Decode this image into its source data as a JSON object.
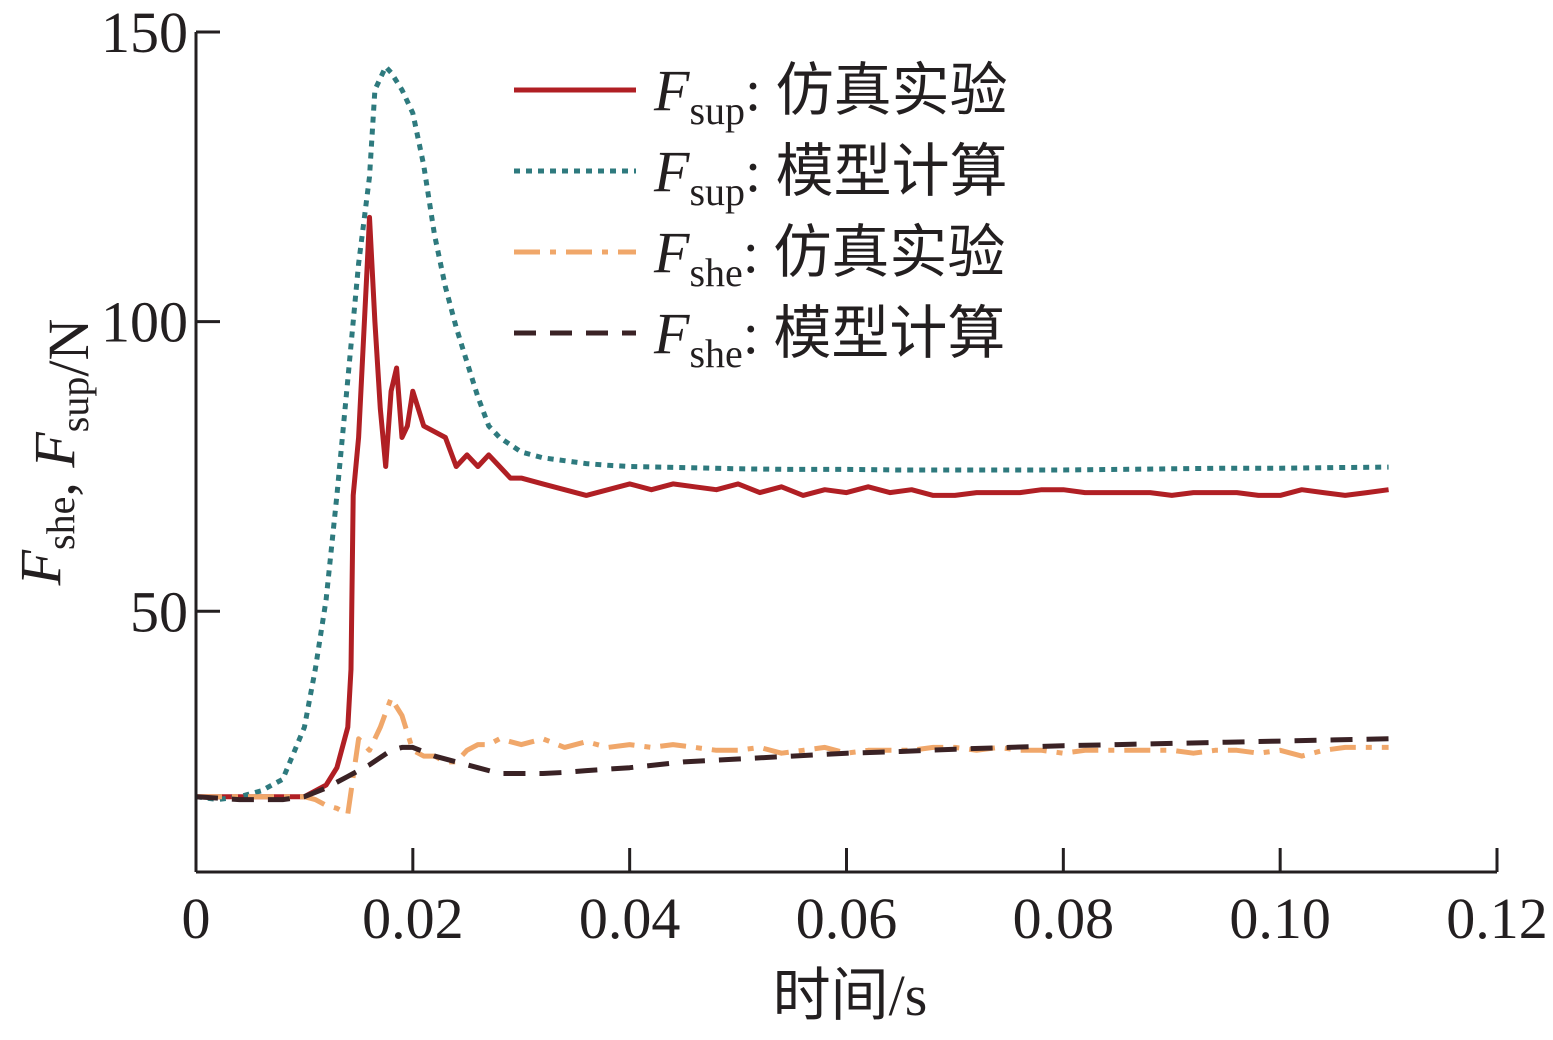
{
  "chart_data": {
    "type": "line",
    "xlabel": "时间/s",
    "ylabel": {
      "segments": [
        {
          "text": "F",
          "italic": true
        },
        {
          "text": "she",
          "sub": true
        },
        {
          "text": ", "
        },
        {
          "text": "F",
          "italic": true
        },
        {
          "text": "sup",
          "sub": true
        },
        {
          "text": "/N"
        }
      ]
    },
    "xlim": [
      0,
      0.12
    ],
    "ylim": [
      5,
      150
    ],
    "x_ticks": [
      0,
      0.02,
      0.04,
      0.06,
      0.08,
      0.1,
      0.12
    ],
    "x_tick_labels": [
      "0",
      "0.02",
      "0.04",
      "0.06",
      "0.08",
      "0.10",
      "0.12"
    ],
    "y_ticks": [
      50,
      100,
      150
    ],
    "y_tick_labels": [
      "50",
      "100",
      "150"
    ],
    "grid": false,
    "legend_position": "top-right",
    "series": [
      {
        "name": "F_sup: 仿真实验",
        "label_var": "F",
        "label_sub": "sup",
        "label_text": ": 仿真实验",
        "color": "#b01f24",
        "style": "solid",
        "points": [
          [
            0,
            18
          ],
          [
            0.008,
            18
          ],
          [
            0.01,
            18
          ],
          [
            0.012,
            20
          ],
          [
            0.013,
            23
          ],
          [
            0.014,
            30
          ],
          [
            0.0143,
            40
          ],
          [
            0.0145,
            70
          ],
          [
            0.015,
            80
          ],
          [
            0.0158,
            110
          ],
          [
            0.016,
            118
          ],
          [
            0.0165,
            100
          ],
          [
            0.017,
            85
          ],
          [
            0.0175,
            75
          ],
          [
            0.018,
            88
          ],
          [
            0.0185,
            92
          ],
          [
            0.019,
            80
          ],
          [
            0.0195,
            82
          ],
          [
            0.02,
            88
          ],
          [
            0.021,
            82
          ],
          [
            0.022,
            81
          ],
          [
            0.023,
            80
          ],
          [
            0.024,
            75
          ],
          [
            0.025,
            77
          ],
          [
            0.026,
            75
          ],
          [
            0.027,
            77
          ],
          [
            0.028,
            75
          ],
          [
            0.029,
            73
          ],
          [
            0.03,
            73
          ],
          [
            0.032,
            72
          ],
          [
            0.034,
            71
          ],
          [
            0.036,
            70
          ],
          [
            0.038,
            71
          ],
          [
            0.04,
            72
          ],
          [
            0.042,
            71
          ],
          [
            0.044,
            72
          ],
          [
            0.046,
            71.5
          ],
          [
            0.048,
            71
          ],
          [
            0.05,
            72
          ],
          [
            0.052,
            70.5
          ],
          [
            0.054,
            71.5
          ],
          [
            0.056,
            70
          ],
          [
            0.058,
            71
          ],
          [
            0.06,
            70.5
          ],
          [
            0.062,
            71.5
          ],
          [
            0.064,
            70.5
          ],
          [
            0.066,
            71
          ],
          [
            0.068,
            70
          ],
          [
            0.07,
            70
          ],
          [
            0.072,
            70.5
          ],
          [
            0.074,
            70.5
          ],
          [
            0.076,
            70.5
          ],
          [
            0.078,
            71
          ],
          [
            0.08,
            71
          ],
          [
            0.082,
            70.5
          ],
          [
            0.084,
            70.5
          ],
          [
            0.086,
            70.5
          ],
          [
            0.088,
            70.5
          ],
          [
            0.09,
            70
          ],
          [
            0.092,
            70.5
          ],
          [
            0.094,
            70.5
          ],
          [
            0.096,
            70.5
          ],
          [
            0.098,
            70
          ],
          [
            0.1,
            70
          ],
          [
            0.102,
            71
          ],
          [
            0.104,
            70.5
          ],
          [
            0.106,
            70
          ],
          [
            0.108,
            70.5
          ],
          [
            0.11,
            71
          ]
        ]
      },
      {
        "name": "F_sup: 模型计算",
        "label_var": "F",
        "label_sub": "sup",
        "label_text": ": 模型计算",
        "color": "#2e7a7e",
        "style": "dotted",
        "points": [
          [
            0,
            18
          ],
          [
            0.002,
            17.5
          ],
          [
            0.004,
            18
          ],
          [
            0.006,
            19
          ],
          [
            0.008,
            21
          ],
          [
            0.01,
            30
          ],
          [
            0.011,
            40
          ],
          [
            0.012,
            52
          ],
          [
            0.013,
            70
          ],
          [
            0.014,
            90
          ],
          [
            0.015,
            110
          ],
          [
            0.016,
            125
          ],
          [
            0.0165,
            140
          ],
          [
            0.017,
            142
          ],
          [
            0.0175,
            144
          ],
          [
            0.018,
            143
          ],
          [
            0.019,
            140
          ],
          [
            0.02,
            136
          ],
          [
            0.021,
            127
          ],
          [
            0.022,
            115
          ],
          [
            0.023,
            106
          ],
          [
            0.024,
            99
          ],
          [
            0.025,
            93
          ],
          [
            0.026,
            87
          ],
          [
            0.027,
            82
          ],
          [
            0.028,
            80
          ],
          [
            0.03,
            77.5
          ],
          [
            0.032,
            76.5
          ],
          [
            0.034,
            76
          ],
          [
            0.036,
            75.5
          ],
          [
            0.038,
            75.2
          ],
          [
            0.04,
            75
          ],
          [
            0.045,
            74.8
          ],
          [
            0.05,
            74.6
          ],
          [
            0.055,
            74.5
          ],
          [
            0.06,
            74.5
          ],
          [
            0.065,
            74.4
          ],
          [
            0.07,
            74.4
          ],
          [
            0.075,
            74.4
          ],
          [
            0.08,
            74.4
          ],
          [
            0.085,
            74.5
          ],
          [
            0.09,
            74.6
          ],
          [
            0.095,
            74.7
          ],
          [
            0.1,
            74.7
          ],
          [
            0.105,
            74.8
          ],
          [
            0.11,
            74.9
          ]
        ]
      },
      {
        "name": "F_she: 仿真实验",
        "label_var": "F",
        "label_sub": "she",
        "label_text": ": 仿真实验",
        "color": "#f0a76a",
        "style": "dashdot",
        "points": [
          [
            0,
            18
          ],
          [
            0.008,
            18
          ],
          [
            0.01,
            18
          ],
          [
            0.011,
            17.5
          ],
          [
            0.012,
            16.5
          ],
          [
            0.013,
            16
          ],
          [
            0.014,
            15
          ],
          [
            0.015,
            28
          ],
          [
            0.016,
            26
          ],
          [
            0.017,
            30
          ],
          [
            0.018,
            35
          ],
          [
            0.019,
            32
          ],
          [
            0.02,
            26
          ],
          [
            0.021,
            25
          ],
          [
            0.022,
            25
          ],
          [
            0.023,
            24
          ],
          [
            0.024,
            24
          ],
          [
            0.025,
            26
          ],
          [
            0.026,
            27
          ],
          [
            0.027,
            27
          ],
          [
            0.028,
            28
          ],
          [
            0.03,
            27
          ],
          [
            0.032,
            28
          ],
          [
            0.034,
            26.5
          ],
          [
            0.036,
            27.5
          ],
          [
            0.038,
            26.5
          ],
          [
            0.04,
            27
          ],
          [
            0.042,
            26.5
          ],
          [
            0.044,
            27
          ],
          [
            0.046,
            26.5
          ],
          [
            0.048,
            26
          ],
          [
            0.05,
            26
          ],
          [
            0.052,
            26.5
          ],
          [
            0.054,
            25.5
          ],
          [
            0.056,
            26
          ],
          [
            0.058,
            26.5
          ],
          [
            0.06,
            25.5
          ],
          [
            0.062,
            26
          ],
          [
            0.064,
            26
          ],
          [
            0.066,
            26
          ],
          [
            0.068,
            26.5
          ],
          [
            0.07,
            26.5
          ],
          [
            0.072,
            26
          ],
          [
            0.074,
            26.5
          ],
          [
            0.076,
            26
          ],
          [
            0.078,
            26
          ],
          [
            0.08,
            25.5
          ],
          [
            0.082,
            26
          ],
          [
            0.084,
            26
          ],
          [
            0.086,
            26
          ],
          [
            0.088,
            26
          ],
          [
            0.09,
            26
          ],
          [
            0.092,
            25.5
          ],
          [
            0.094,
            26
          ],
          [
            0.096,
            26
          ],
          [
            0.098,
            25.5
          ],
          [
            0.1,
            26
          ],
          [
            0.102,
            25
          ],
          [
            0.104,
            26
          ],
          [
            0.106,
            26.5
          ],
          [
            0.108,
            26.5
          ],
          [
            0.11,
            26.5
          ]
        ]
      },
      {
        "name": "F_she: 模型计算",
        "label_var": "F",
        "label_sub": "she",
        "label_text": ": 模型计算",
        "color": "#3a2225",
        "style": "dashed",
        "points": [
          [
            0,
            18
          ],
          [
            0.004,
            17.5
          ],
          [
            0.008,
            17.5
          ],
          [
            0.01,
            18
          ],
          [
            0.012,
            19.5
          ],
          [
            0.014,
            21.5
          ],
          [
            0.016,
            23.5
          ],
          [
            0.018,
            26
          ],
          [
            0.019,
            26.5
          ],
          [
            0.02,
            26.5
          ],
          [
            0.022,
            25
          ],
          [
            0.024,
            24
          ],
          [
            0.026,
            23
          ],
          [
            0.028,
            22
          ],
          [
            0.03,
            22
          ],
          [
            0.032,
            22
          ],
          [
            0.034,
            22.2
          ],
          [
            0.036,
            22.5
          ],
          [
            0.04,
            23
          ],
          [
            0.045,
            24
          ],
          [
            0.05,
            24.5
          ],
          [
            0.055,
            25
          ],
          [
            0.06,
            25.5
          ],
          [
            0.065,
            25.8
          ],
          [
            0.07,
            26.2
          ],
          [
            0.075,
            26.5
          ],
          [
            0.08,
            26.8
          ],
          [
            0.085,
            27
          ],
          [
            0.09,
            27.2
          ],
          [
            0.095,
            27.4
          ],
          [
            0.1,
            27.6
          ],
          [
            0.105,
            27.8
          ],
          [
            0.11,
            28
          ]
        ]
      }
    ]
  }
}
